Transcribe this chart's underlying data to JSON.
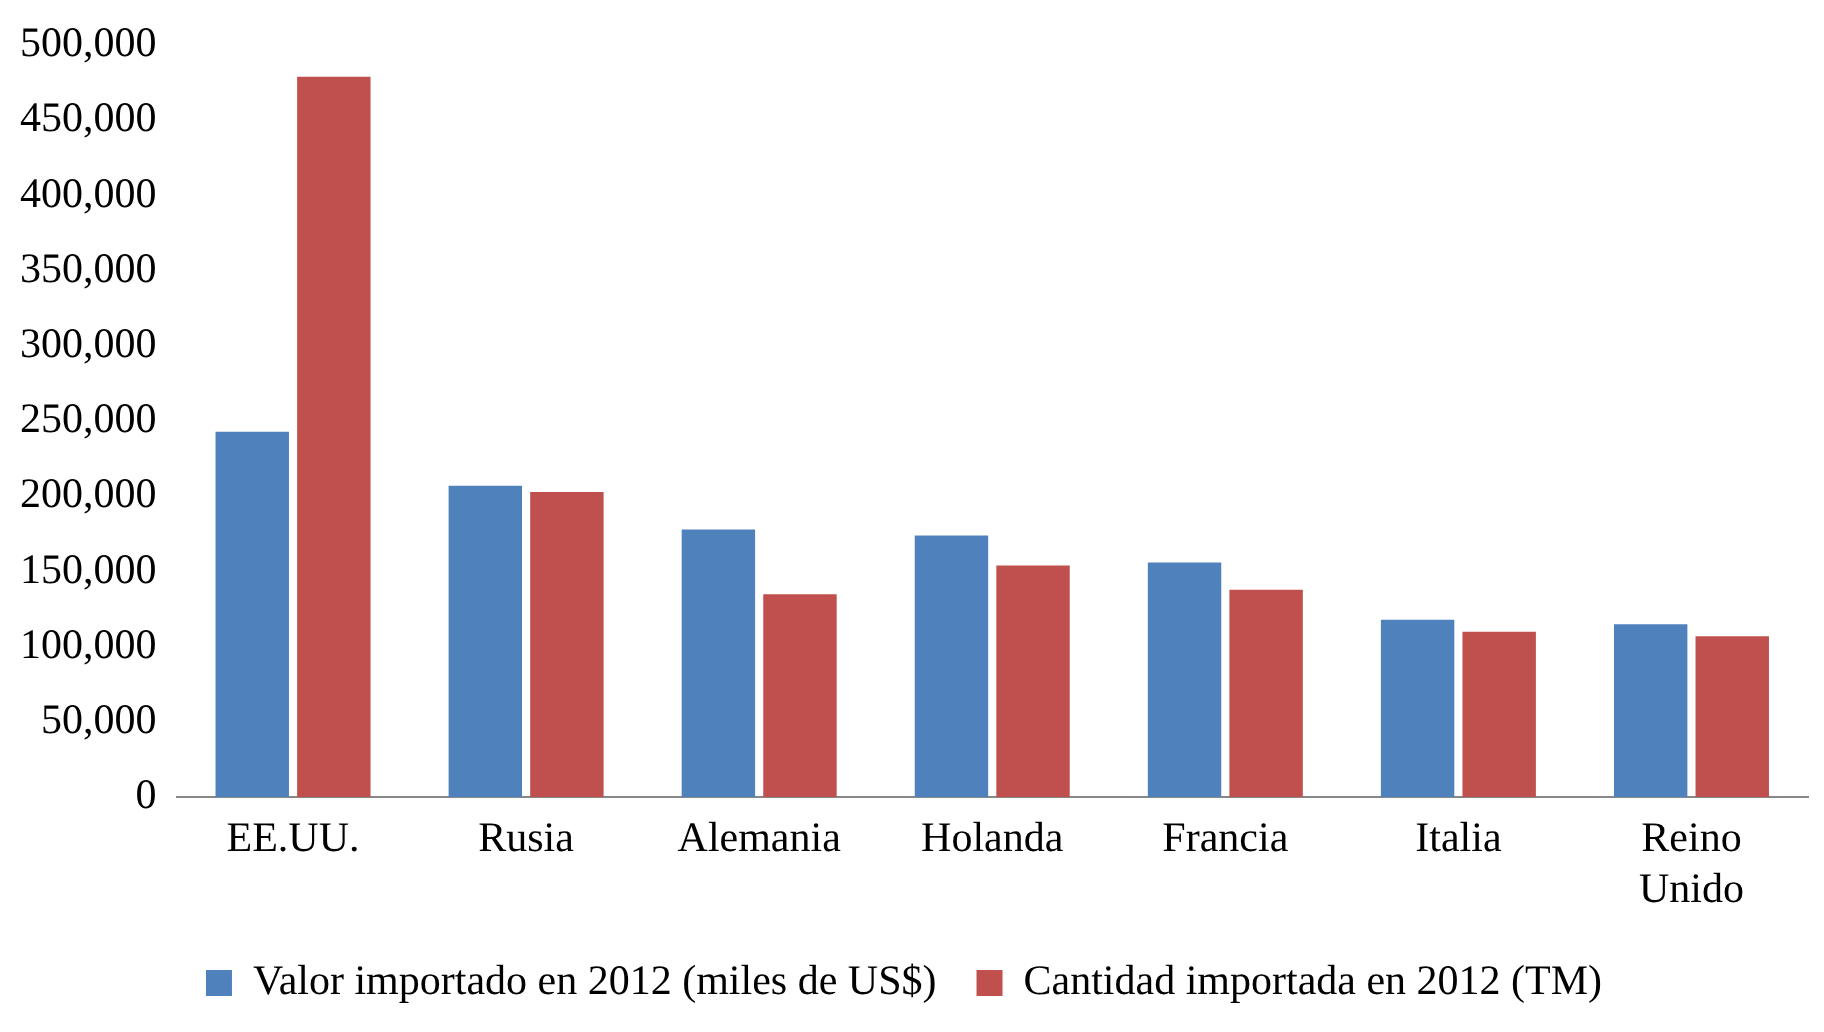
{
  "chart_data": {
    "type": "bar",
    "categories": [
      "EE.UU.",
      "Rusia",
      "Alemania",
      "Holanda",
      "Francia",
      "Italia",
      "Reino Unido"
    ],
    "series": [
      {
        "name": "Valor importado en 2012 (miles de US$)",
        "color": "#4f81bd",
        "values": [
          243000,
          207000,
          178000,
          174000,
          156000,
          118000,
          115000
        ]
      },
      {
        "name": "Cantidad importada en 2012 (TM)",
        "color": "#c0504d",
        "values": [
          479000,
          203000,
          135000,
          154000,
          138000,
          110000,
          107000
        ]
      }
    ],
    "ylim": [
      0,
      500000
    ],
    "yticks": [
      {
        "value": 0,
        "label": "0"
      },
      {
        "value": 50000,
        "label": "50,000"
      },
      {
        "value": 100000,
        "label": "100,000"
      },
      {
        "value": 150000,
        "label": "150,000"
      },
      {
        "value": 200000,
        "label": "200,000"
      },
      {
        "value": 250000,
        "label": "250,000"
      },
      {
        "value": 300000,
        "label": "300,000"
      },
      {
        "value": 350000,
        "label": "350,000"
      },
      {
        "value": 400000,
        "label": "400,000"
      },
      {
        "value": 450000,
        "label": "450,000"
      },
      {
        "value": 500000,
        "label": "500,000"
      }
    ],
    "grid": false,
    "legend": "bottom"
  }
}
